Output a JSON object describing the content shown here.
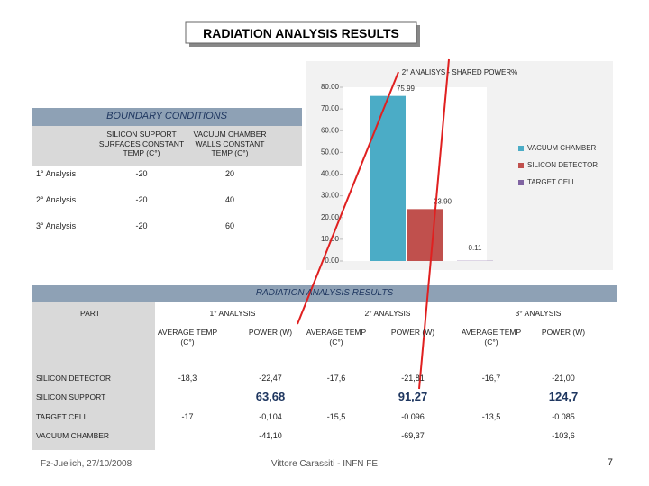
{
  "title": "RADIATION ANALYSIS RESULTS",
  "boundary_conditions": {
    "title": "BOUNDARY CONDITIONS",
    "columns": [
      "SILICON SUPPORT SURFACES CONSTANT TEMP (C°)",
      "VACUUM CHAMBER WALLS CONSTANT TEMP (C°)"
    ],
    "rows": [
      [
        "1° Analysis",
        "-20",
        "20"
      ],
      [
        "2° Analysis",
        "-20",
        "40"
      ],
      [
        "3° Analysis",
        "-20",
        "60"
      ]
    ]
  },
  "chart_data": {
    "type": "bar",
    "title": "2° ANALISYS  -  SHARED POWER%",
    "series": [
      {
        "name": "VACUUM CHAMBER",
        "color": "#4bacc6",
        "values": [
          75.99
        ],
        "value_labels": [
          "75.99"
        ]
      },
      {
        "name": "SILICON DETECTOR",
        "color": "#c0504d",
        "values": [
          23.9
        ],
        "value_labels": [
          "23.90"
        ]
      },
      {
        "name": "TARGET CELL",
        "color": "#8064a2",
        "values": [
          0.11
        ],
        "value_labels": [
          "0.11"
        ]
      }
    ],
    "ylim": [
      0,
      80
    ],
    "yticks": [
      {
        "value": 0,
        "label": "0.00"
      },
      {
        "value": 10,
        "label": "10.00"
      },
      {
        "value": 20,
        "label": "20.00"
      },
      {
        "value": 30,
        "label": "30.00"
      },
      {
        "value": 40,
        "label": "40.00"
      },
      {
        "value": 50,
        "label": "50.00"
      },
      {
        "value": 60,
        "label": "60.00"
      },
      {
        "value": 70,
        "label": "70.00"
      },
      {
        "value": 80,
        "label": "80.00"
      }
    ],
    "grid": false,
    "legend": "right"
  },
  "results": {
    "title": "RADIATION ANALYSIS RESULTS",
    "part_header": "PART",
    "analyses": [
      "1° ANALYSIS",
      "2° ANALYSIS",
      "3° ANALYSIS"
    ],
    "subheaders": [
      "AVERAGE TEMP (C°)",
      "POWER (W)"
    ],
    "rows": [
      {
        "part": "SILICON DETECTOR",
        "values": [
          "-18,3",
          "-22,47",
          "-17,6",
          "-21,81",
          "-16,7",
          "-21,00"
        ]
      },
      {
        "part": "SILICON SUPPORT",
        "values": [
          null,
          "63,68",
          null,
          "91,27",
          null,
          "124,7"
        ]
      },
      {
        "part": "TARGET CELL",
        "values": [
          "-17",
          "-0,104",
          "-15,5",
          "-0.096",
          "-13,5",
          "-0.085"
        ]
      },
      {
        "part": "VACUUM CHAMBER",
        "values": [
          null,
          "-41,10",
          null,
          "-69,37",
          null,
          "-103,6"
        ]
      }
    ]
  },
  "footer": {
    "left": "Fz-Juelich, 27/10/2008",
    "center": "Vittore Carassiti - INFN FE",
    "page": "7"
  }
}
